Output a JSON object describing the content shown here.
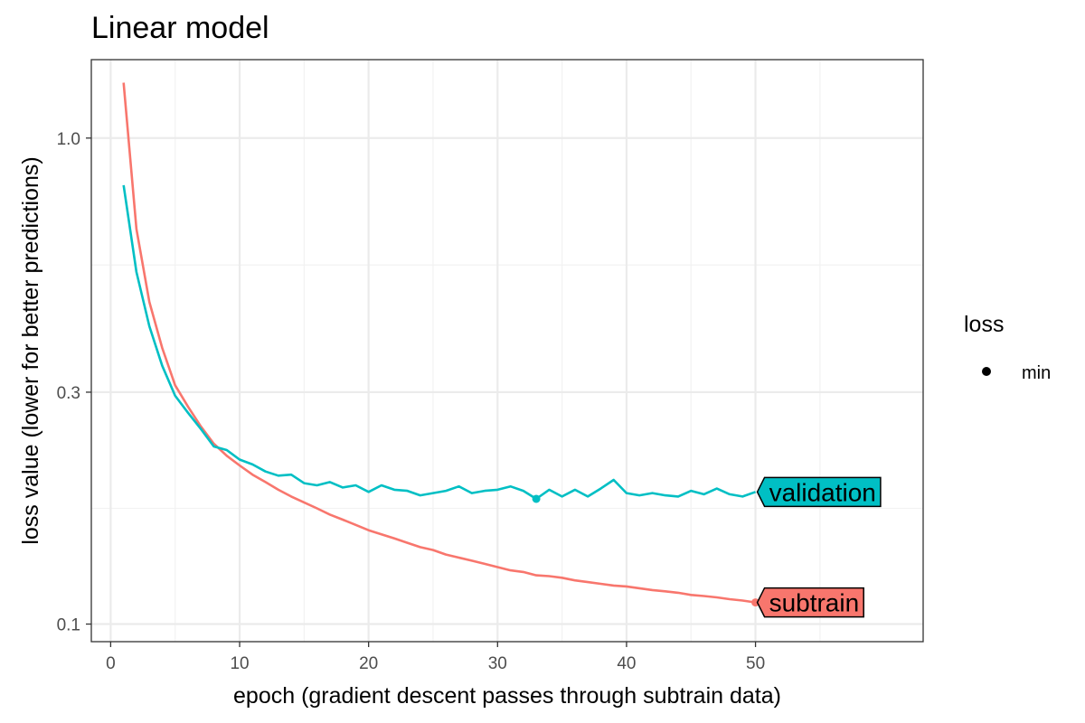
{
  "chart_data": {
    "type": "line",
    "title": "Linear model",
    "xlabel": "epoch (gradient descent passes through subtrain data)",
    "ylabel": "loss value (lower for better predictions)",
    "xlim": [
      -1.5,
      63
    ],
    "ylim": [
      0.092,
      1.45
    ],
    "y_scale": "log",
    "x_ticks": [
      0,
      10,
      20,
      30,
      40,
      50
    ],
    "y_ticks": [
      0.1,
      0.3,
      1.0
    ],
    "y_tick_labels": [
      "0.1",
      "0.3",
      "1.0"
    ],
    "y_minor_ticks": [
      0.173,
      0.548
    ],
    "grid": true,
    "legend": {
      "title": "loss",
      "placement": "right",
      "entries": [
        {
          "label": "min",
          "marker": "point",
          "color": "#000000"
        }
      ]
    },
    "series": [
      {
        "name": "subtrain",
        "color": "#F8766D",
        "x": [
          1,
          2,
          3,
          4,
          5,
          6,
          7,
          8,
          9,
          10,
          11,
          12,
          13,
          14,
          15,
          16,
          17,
          18,
          19,
          20,
          21,
          22,
          23,
          24,
          25,
          26,
          27,
          28,
          29,
          30,
          31,
          32,
          33,
          34,
          35,
          36,
          37,
          38,
          39,
          40,
          41,
          42,
          43,
          44,
          45,
          46,
          47,
          48,
          49,
          50
        ],
        "values": [
          1.3,
          0.65,
          0.46,
          0.37,
          0.31,
          0.28,
          0.255,
          0.235,
          0.222,
          0.212,
          0.203,
          0.196,
          0.189,
          0.183,
          0.178,
          0.173,
          0.168,
          0.164,
          0.16,
          0.156,
          0.153,
          0.15,
          0.147,
          0.144,
          0.142,
          0.139,
          0.137,
          0.135,
          0.133,
          0.131,
          0.129,
          0.128,
          0.126,
          0.1255,
          0.1245,
          0.123,
          0.122,
          0.121,
          0.12,
          0.1195,
          0.1185,
          0.1175,
          0.1168,
          0.116,
          0.1148,
          0.1142,
          0.1135,
          0.1125,
          0.1118,
          0.1108
        ],
        "min": {
          "x": 50,
          "y": 0.1108
        }
      },
      {
        "name": "validation",
        "color": "#00BFC4",
        "x": [
          1,
          2,
          3,
          4,
          5,
          6,
          7,
          8,
          9,
          10,
          11,
          12,
          13,
          14,
          15,
          16,
          17,
          18,
          19,
          20,
          21,
          22,
          23,
          24,
          25,
          26,
          27,
          28,
          29,
          30,
          31,
          32,
          33,
          34,
          35,
          36,
          37,
          38,
          39,
          40,
          41,
          42,
          43,
          44,
          45,
          46,
          47,
          48,
          49,
          50
        ],
        "values": [
          0.8,
          0.53,
          0.41,
          0.34,
          0.295,
          0.272,
          0.252,
          0.232,
          0.228,
          0.218,
          0.213,
          0.206,
          0.202,
          0.203,
          0.195,
          0.193,
          0.196,
          0.191,
          0.193,
          0.187,
          0.193,
          0.189,
          0.188,
          0.184,
          0.186,
          0.188,
          0.192,
          0.186,
          0.188,
          0.189,
          0.192,
          0.188,
          0.181,
          0.189,
          0.183,
          0.189,
          0.183,
          0.19,
          0.198,
          0.186,
          0.184,
          0.186,
          0.184,
          0.183,
          0.188,
          0.185,
          0.19,
          0.185,
          0.183,
          0.187
        ],
        "min": {
          "x": 33,
          "y": 0.181
        }
      }
    ]
  }
}
